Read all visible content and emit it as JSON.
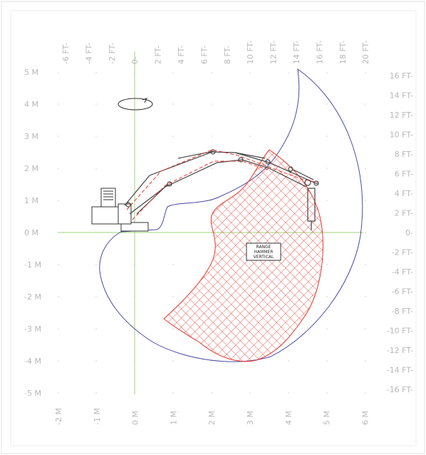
{
  "labels": {
    "left_m": [
      "5 M",
      "4 M",
      "3 M",
      "2 M",
      "1 M",
      "0 M",
      "-1 M",
      "-2 M",
      "-3 M",
      "-4 M",
      "-5 M"
    ],
    "bottom_m": [
      "-2 M",
      "-1 M",
      "0 M",
      "1 M",
      "2 M",
      "3 M",
      "4 M",
      "5 M",
      "6 M"
    ],
    "top_ft": [
      "-6 FT-",
      "-4 FT-",
      "-2 FT-",
      "0-",
      "2 FT-",
      "4 FT-",
      "6 FT-",
      "8 FT-",
      "10 FT-",
      "12 FT-",
      "14 FT-",
      "16 FT-",
      "18 FT-",
      "20 FT-"
    ],
    "right_ft": [
      "16 FT-",
      "14 FT-",
      "12 FT-",
      "10 FT-",
      "8 FT-",
      "6 FT-",
      "4 FT-",
      "2 FT-",
      "0-",
      "-2 FT-",
      "-4 FT-",
      "-6 FT-",
      "-8 FT-",
      "-10 FT-",
      "-12 FT-",
      "-14 FT-",
      "-16 FT-"
    ]
  },
  "range_label": [
    "RANGE",
    "HAMMER",
    "VERTICAL"
  ],
  "colors": {
    "grid_text": "#b8b8b8",
    "axis": "#9fd47a",
    "envelope": "#4a4aa6",
    "hatch": "#e8352a",
    "machine": "#333333",
    "dashed": "#e8352a"
  }
}
